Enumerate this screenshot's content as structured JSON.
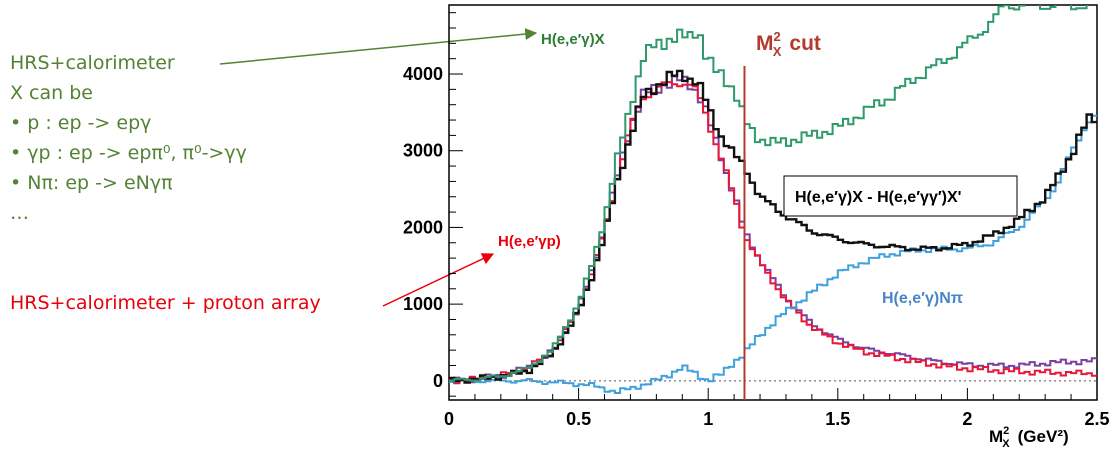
{
  "notes": {
    "lines": [
      "HRS+calorimeter",
      "X can be",
      "• p : ep -> epγ",
      "• γp : ep -> epπ⁰, π⁰->γγ",
      "• Nπ: ep -> eNγπ",
      "…"
    ],
    "proton_array": "HRS+calorimeter + proton array",
    "colors": {
      "green": "#548235",
      "red": "#e8000b"
    }
  },
  "chart_data": {
    "type": "line",
    "title": "",
    "xlabel": "M²X (GeV²)",
    "xlabel_main": "M",
    "xlabel_sup": "2",
    "xlabel_sub": "X",
    "xlabel_units": "(GeV²)",
    "ylabel": "",
    "xlim": [
      0,
      2.5
    ],
    "ylim": [
      -250,
      4900
    ],
    "xticks": [
      0,
      0.5,
      1,
      1.5,
      2,
      2.5
    ],
    "xtick_labels": [
      "0",
      "0.5",
      "1",
      "1.5",
      "2",
      "2.5"
    ],
    "yticks": [
      0,
      1000,
      2000,
      3000,
      4000
    ],
    "ytick_labels": [
      "0",
      "1000",
      "2000",
      "3000",
      "4000"
    ],
    "cut": {
      "x": 1.14,
      "label_main": "M",
      "label_sup": "2",
      "label_sub": "X",
      "label_rest": "cut",
      "color": "#b23a2e"
    },
    "series": [
      {
        "name": "H(e,e′γ)X",
        "color": "#2e9a6c",
        "x": [
          0.0,
          0.1,
          0.2,
          0.3,
          0.4,
          0.5,
          0.55,
          0.6,
          0.65,
          0.7,
          0.75,
          0.8,
          0.85,
          0.9,
          0.93,
          0.96,
          0.99,
          1.02,
          1.05,
          1.08,
          1.11,
          1.14,
          1.17,
          1.2,
          1.25,
          1.3,
          1.4,
          1.5,
          1.6,
          1.7,
          1.8,
          1.9,
          2.0,
          2.1,
          2.15,
          2.2,
          2.5
        ],
        "y": [
          0,
          20,
          60,
          150,
          400,
          1000,
          1500,
          2100,
          2900,
          3600,
          4200,
          4400,
          4450,
          4480,
          4500,
          4620,
          4250,
          4050,
          4000,
          3900,
          3700,
          3400,
          3250,
          3150,
          3100,
          3120,
          3200,
          3300,
          3500,
          3700,
          3950,
          4150,
          4400,
          4700,
          4900,
          4900,
          4900
        ]
      },
      {
        "name": "H(e,e′γ)X - H(e,e′γγ′)X'",
        "color": "#111111",
        "x": [
          0.0,
          0.1,
          0.2,
          0.3,
          0.4,
          0.5,
          0.55,
          0.6,
          0.65,
          0.7,
          0.75,
          0.8,
          0.85,
          0.9,
          0.93,
          0.96,
          0.99,
          1.02,
          1.05,
          1.08,
          1.11,
          1.14,
          1.2,
          1.3,
          1.4,
          1.5,
          1.6,
          1.7,
          1.8,
          1.9,
          2.0,
          2.1,
          2.2,
          2.3,
          2.35,
          2.4,
          2.45,
          2.48,
          2.5
        ],
        "y": [
          0,
          20,
          60,
          120,
          350,
          900,
          1350,
          1900,
          2600,
          3200,
          3700,
          3850,
          3950,
          4000,
          3950,
          3900,
          3650,
          3400,
          3200,
          3050,
          2900,
          2800,
          2400,
          2150,
          1950,
          1850,
          1780,
          1750,
          1720,
          1730,
          1780,
          1900,
          2100,
          2400,
          2650,
          2950,
          3300,
          3450,
          3400
        ]
      },
      {
        "name": "H(e,e′γp)",
        "color": "#e8173a",
        "x": [
          0.0,
          0.1,
          0.2,
          0.3,
          0.4,
          0.5,
          0.55,
          0.6,
          0.65,
          0.7,
          0.75,
          0.8,
          0.85,
          0.9,
          0.93,
          0.96,
          0.99,
          1.02,
          1.05,
          1.08,
          1.11,
          1.14,
          1.2,
          1.3,
          1.4,
          1.5,
          1.6,
          1.7,
          1.8,
          1.9,
          2.0,
          2.1,
          2.2,
          2.3,
          2.4,
          2.5
        ],
        "y": [
          0,
          20,
          70,
          160,
          380,
          920,
          1400,
          1950,
          2650,
          3300,
          3700,
          3800,
          3870,
          3900,
          3850,
          3750,
          3500,
          3200,
          2900,
          2600,
          2300,
          1900,
          1550,
          1050,
          700,
          500,
          380,
          320,
          250,
          200,
          160,
          140,
          120,
          110,
          100,
          100
        ]
      },
      {
        "name": "H(e,e′γ)Nπ",
        "color": "#3fa0dc",
        "x": [
          0.0,
          0.1,
          0.2,
          0.3,
          0.4,
          0.5,
          0.55,
          0.6,
          0.65,
          0.7,
          0.75,
          0.8,
          0.85,
          0.9,
          0.95,
          1.0,
          1.05,
          1.1,
          1.14,
          1.2,
          1.3,
          1.4,
          1.5,
          1.6,
          1.7,
          1.8,
          1.9,
          2.0,
          2.1,
          2.2,
          2.3,
          2.35,
          2.4,
          2.45,
          2.48,
          2.5
        ],
        "y": [
          0,
          0,
          0,
          0,
          -20,
          -40,
          -60,
          -100,
          -150,
          -100,
          -50,
          0,
          80,
          180,
          100,
          0,
          80,
          250,
          350,
          600,
          900,
          1150,
          1400,
          1550,
          1650,
          1700,
          1720,
          1720,
          1800,
          2000,
          2350,
          2600,
          2950,
          3300,
          3450,
          3400
        ]
      },
      {
        "name": "purple overlay",
        "color": "#7a3fa0",
        "x": [
          0.0,
          0.1,
          0.2,
          0.3,
          0.4,
          0.5,
          0.55,
          0.6,
          0.65,
          0.7,
          0.75,
          0.8,
          0.85,
          0.9,
          0.93,
          0.96,
          0.99,
          1.02,
          1.05,
          1.08,
          1.11,
          1.14,
          1.2,
          1.3,
          1.4,
          1.5,
          1.6,
          1.7,
          1.8,
          1.9,
          2.0,
          2.1,
          2.2,
          2.3,
          2.4,
          2.45,
          2.5
        ],
        "y": [
          0,
          20,
          70,
          160,
          380,
          940,
          1420,
          1980,
          2680,
          3320,
          3720,
          3820,
          3880,
          3920,
          3870,
          3770,
          3520,
          3220,
          2920,
          2620,
          2320,
          1940,
          1580,
          1080,
          740,
          540,
          420,
          360,
          300,
          240,
          210,
          200,
          200,
          230,
          250,
          250,
          260
        ]
      }
    ],
    "annotations": [
      {
        "text": "H(e,e′γ)X",
        "color": "#2e7d32"
      },
      {
        "text": "H(e,e′γ)X - H(e,e′γγ′)X'",
        "color": "#000000",
        "boxed": true
      },
      {
        "text": "H(e,e′γp)",
        "color": "#e8000b"
      },
      {
        "text": "H(e,e′γ)Nπ",
        "color": "#4a86c5"
      }
    ]
  }
}
